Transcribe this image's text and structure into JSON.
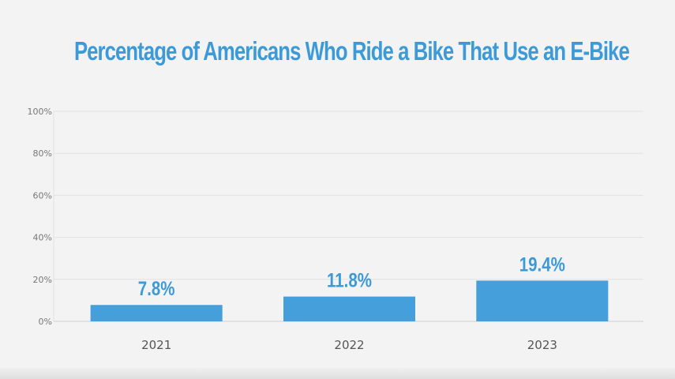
{
  "chart_data": {
    "type": "bar",
    "title": "Percentage of Americans Who Ride a Bike That Use an E-Bike",
    "xlabel": "",
    "ylabel": "",
    "categories": [
      "2021",
      "2022",
      "2023"
    ],
    "values": [
      7.8,
      11.8,
      19.4
    ],
    "data_labels": [
      "7.8%",
      "11.8%",
      "19.4%"
    ],
    "ylim": [
      0,
      100
    ],
    "yticks": [
      0,
      20,
      40,
      60,
      80,
      100
    ],
    "ytick_labels": [
      "0%",
      "20%",
      "40%",
      "60%",
      "80%",
      "100%"
    ],
    "grid": true,
    "legend": "none",
    "bar_color": "#449fdb",
    "title_color": "#3d9ad8"
  }
}
